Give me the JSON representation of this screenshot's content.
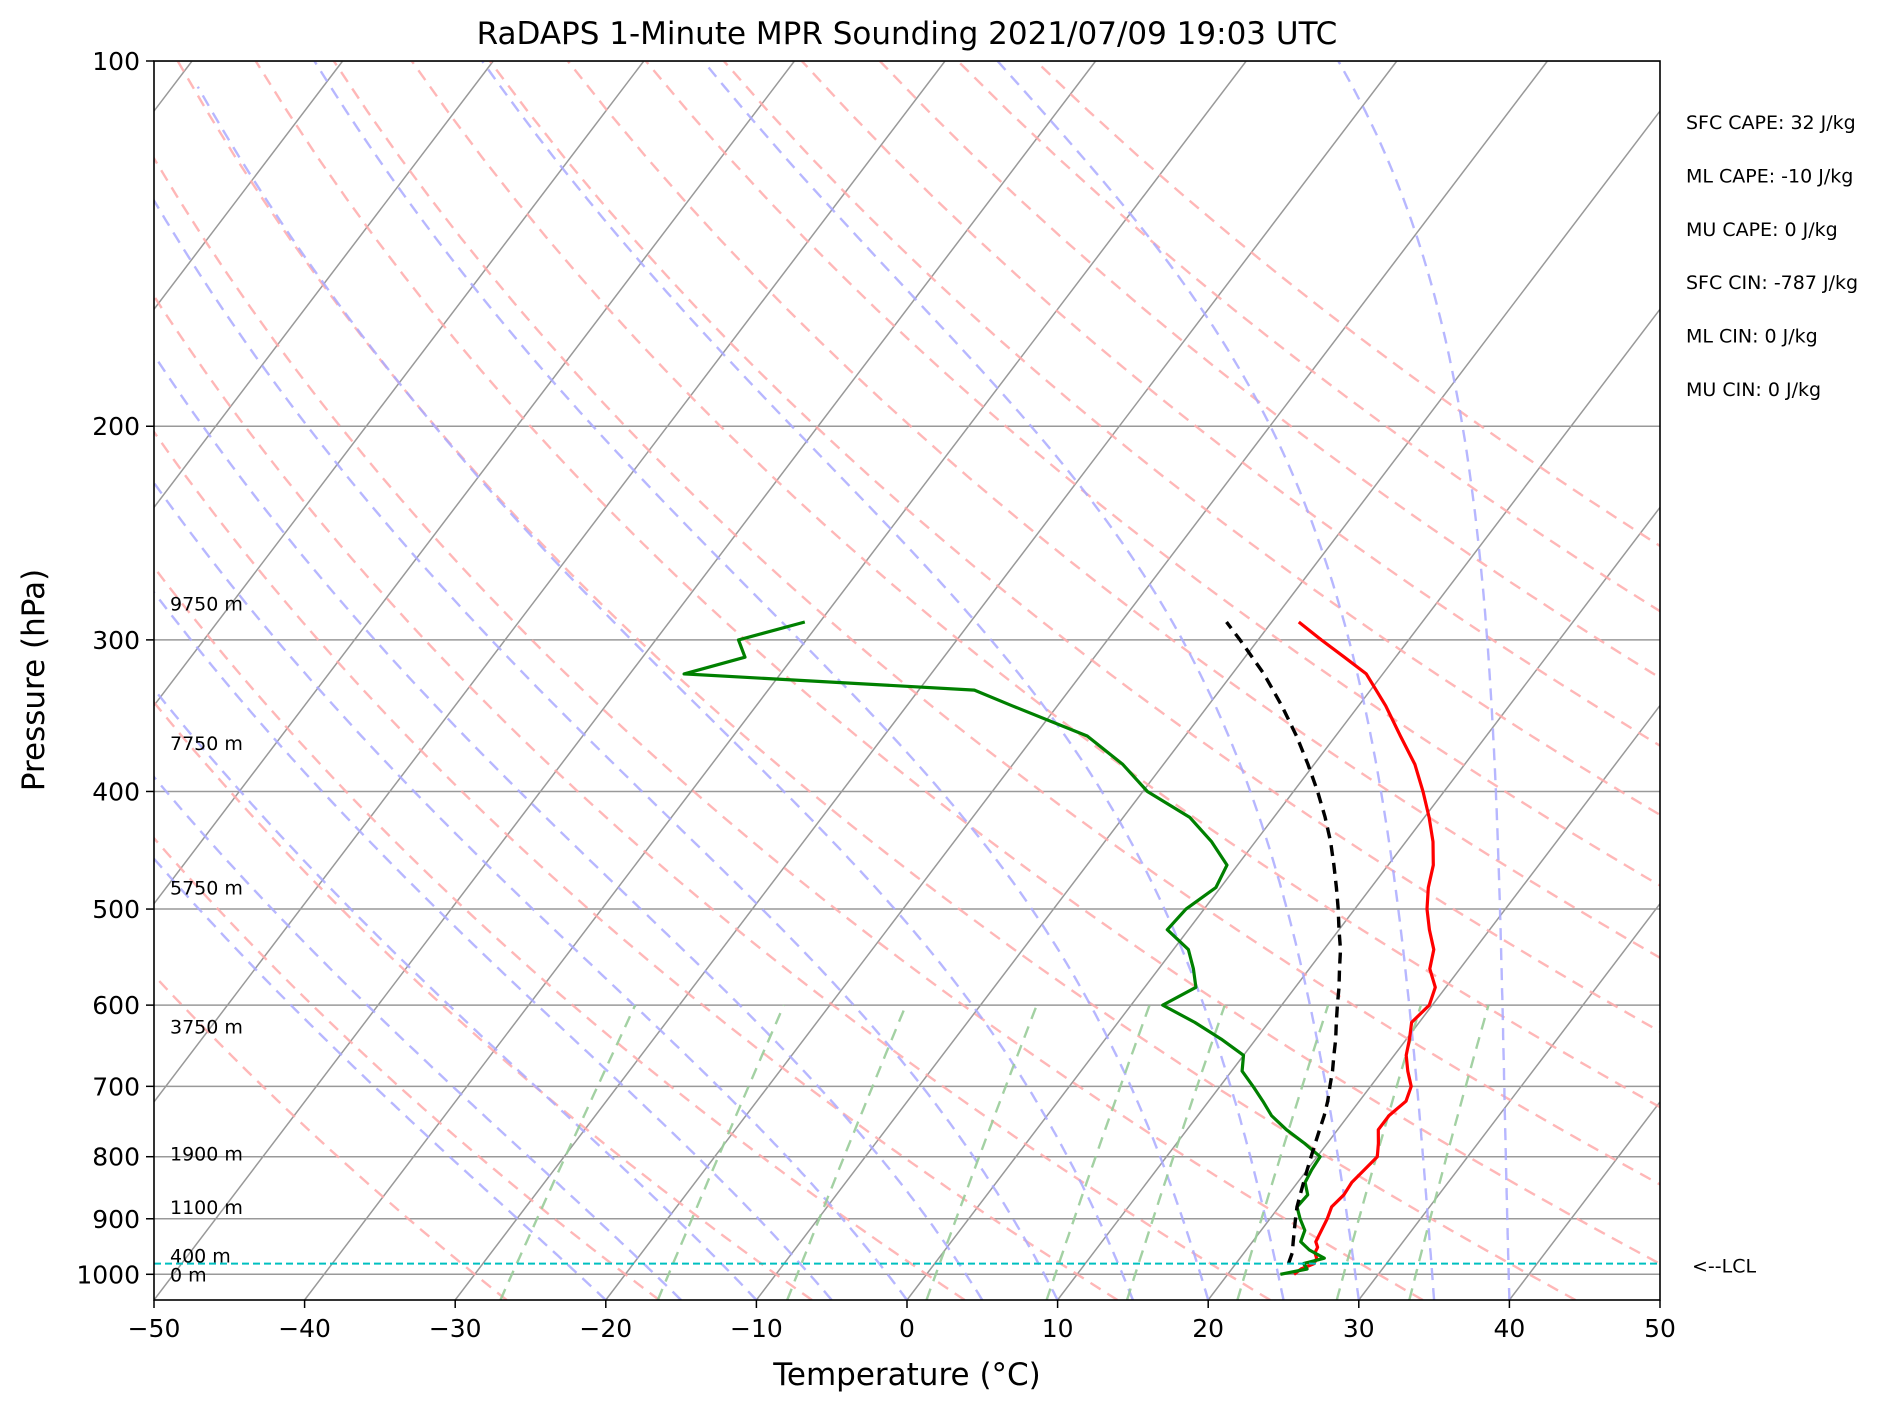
{
  "chart_data": {
    "type": "line",
    "title": "RaDAPS 1-Minute MPR Sounding 2021/07/09 19:03 UTC",
    "xlabel": "Temperature (°C)",
    "ylabel": "Pressure (hPa)",
    "xlim": [
      -50,
      50
    ],
    "ylim": [
      1050,
      100
    ],
    "y_scale": "log",
    "x_ticks": [
      -50,
      -40,
      -30,
      -20,
      -10,
      0,
      10,
      20,
      30,
      40,
      50
    ],
    "x_tick_labels": [
      "−50",
      "−40",
      "−30",
      "−20",
      "−10",
      "0",
      "10",
      "20",
      "30",
      "40",
      "50"
    ],
    "y_ticks": [
      100,
      200,
      300,
      400,
      500,
      600,
      700,
      800,
      900,
      1000
    ],
    "y_tick_labels": [
      "100",
      "200",
      "300",
      "400",
      "500",
      "600",
      "700",
      "800",
      "900",
      "1000"
    ],
    "grid": true,
    "series": [
      {
        "color": "#ff0000",
        "points": [
          [
            1000,
            24.4
          ],
          [
            990,
            24.6
          ],
          [
            980,
            25.2
          ],
          [
            970,
            25.1
          ],
          [
            960,
            24.7
          ],
          [
            950,
            24.6
          ],
          [
            940,
            24.2
          ],
          [
            920,
            24.0
          ],
          [
            900,
            23.8
          ],
          [
            880,
            23.5
          ],
          [
            860,
            23.7
          ],
          [
            840,
            23.6
          ],
          [
            820,
            23.8
          ],
          [
            800,
            24.0
          ],
          [
            780,
            23.4
          ],
          [
            760,
            22.7
          ],
          [
            740,
            22.7
          ],
          [
            720,
            23.1
          ],
          [
            700,
            22.7
          ],
          [
            680,
            21.7
          ],
          [
            660,
            20.8
          ],
          [
            640,
            20.2
          ],
          [
            620,
            19.5
          ],
          [
            600,
            19.8
          ],
          [
            580,
            19.3
          ],
          [
            560,
            18.0
          ],
          [
            540,
            17.3
          ],
          [
            520,
            16.0
          ],
          [
            500,
            14.8
          ],
          [
            480,
            13.8
          ],
          [
            460,
            13.0
          ],
          [
            440,
            11.8
          ],
          [
            420,
            10.3
          ],
          [
            400,
            8.6
          ],
          [
            380,
            6.7
          ],
          [
            360,
            4.3
          ],
          [
            340,
            1.8
          ],
          [
            320,
            -1.1
          ],
          [
            310,
            -3.4
          ],
          [
            300,
            -5.8
          ],
          [
            290,
            -8.2
          ]
        ]
      },
      {
        "color": "#008000",
        "points": [
          [
            1000,
            23.5
          ],
          [
            990,
            25.0
          ],
          [
            980,
            24.5
          ],
          [
            970,
            25.6
          ],
          [
            955,
            24.2
          ],
          [
            940,
            23.2
          ],
          [
            920,
            22.9
          ],
          [
            900,
            22.0
          ],
          [
            880,
            21.2
          ],
          [
            860,
            21.3
          ],
          [
            840,
            20.5
          ],
          [
            820,
            20.3
          ],
          [
            800,
            20.2
          ],
          [
            780,
            18.5
          ],
          [
            760,
            16.6
          ],
          [
            740,
            14.9
          ],
          [
            720,
            13.6
          ],
          [
            700,
            12.2
          ],
          [
            680,
            10.7
          ],
          [
            660,
            10.0
          ],
          [
            640,
            7.7
          ],
          [
            620,
            5.1
          ],
          [
            600,
            2.1
          ],
          [
            580,
            3.4
          ],
          [
            560,
            2.3
          ],
          [
            540,
            1.0
          ],
          [
            520,
            -1.4
          ],
          [
            500,
            -1.2
          ],
          [
            480,
            -0.3
          ],
          [
            460,
            -0.7
          ],
          [
            440,
            -2.9
          ],
          [
            420,
            -5.6
          ],
          [
            400,
            -9.7
          ],
          [
            380,
            -12.7
          ],
          [
            360,
            -16.5
          ],
          [
            340,
            -23.0
          ],
          [
            330,
            -26.3
          ],
          [
            320,
            -46.4
          ],
          [
            310,
            -43.2
          ],
          [
            300,
            -44.5
          ],
          [
            290,
            -41.0
          ]
        ]
      },
      {
        "color": "#000000",
        "style": "dashed",
        "points": [
          [
            980,
            23.5
          ],
          [
            960,
            23.2
          ],
          [
            940,
            22.7
          ],
          [
            920,
            22.2
          ],
          [
            900,
            21.7
          ],
          [
            880,
            21.2
          ],
          [
            860,
            20.8
          ],
          [
            840,
            20.4
          ],
          [
            820,
            20.0
          ],
          [
            800,
            19.6
          ],
          [
            780,
            19.2
          ],
          [
            760,
            18.8
          ],
          [
            740,
            18.4
          ],
          [
            720,
            17.9
          ],
          [
            700,
            17.3
          ],
          [
            680,
            16.7
          ],
          [
            660,
            16.0
          ],
          [
            640,
            15.3
          ],
          [
            620,
            14.5
          ],
          [
            600,
            13.7
          ],
          [
            580,
            12.9
          ],
          [
            560,
            12.0
          ],
          [
            540,
            11.1
          ],
          [
            520,
            10.0
          ],
          [
            500,
            8.9
          ],
          [
            480,
            7.7
          ],
          [
            460,
            6.4
          ],
          [
            440,
            5.0
          ],
          [
            420,
            3.4
          ],
          [
            400,
            1.6
          ],
          [
            380,
            -0.4
          ],
          [
            360,
            -2.6
          ],
          [
            340,
            -5.1
          ],
          [
            320,
            -7.9
          ],
          [
            300,
            -11.2
          ],
          [
            290,
            -13.0
          ]
        ]
      }
    ],
    "height_labels": [
      {
        "pressure": 280,
        "text": "9750 m"
      },
      {
        "pressure": 365,
        "text": "7750 m"
      },
      {
        "pressure": 480,
        "text": "5750 m"
      },
      {
        "pressure": 625,
        "text": "3750 m"
      },
      {
        "pressure": 795,
        "text": "1900 m"
      },
      {
        "pressure": 880,
        "text": "1100 m"
      },
      {
        "pressure": 965,
        "text": "400 m"
      },
      {
        "pressure": 1000,
        "text": "0 m"
      }
    ],
    "lcl": {
      "pressure": 980,
      "label": "<--LCL",
      "color": "#00c0c0"
    },
    "annotations": [
      "SFC CAPE: 32 J/kg",
      "ML CAPE: -10 J/kg",
      "MU CAPE: 0 J/kg",
      "SFC CIN: -787 J/kg",
      "ML CIN: 0 J/kg",
      "MU CIN: 0 J/kg"
    ],
    "background_lines": {
      "isotherms_color": "#999999",
      "dry_adiabats_color": "#ffaaaa",
      "moist_adiabats_color": "#aaaaff",
      "mixing_ratio_color": "#99cc99"
    }
  }
}
